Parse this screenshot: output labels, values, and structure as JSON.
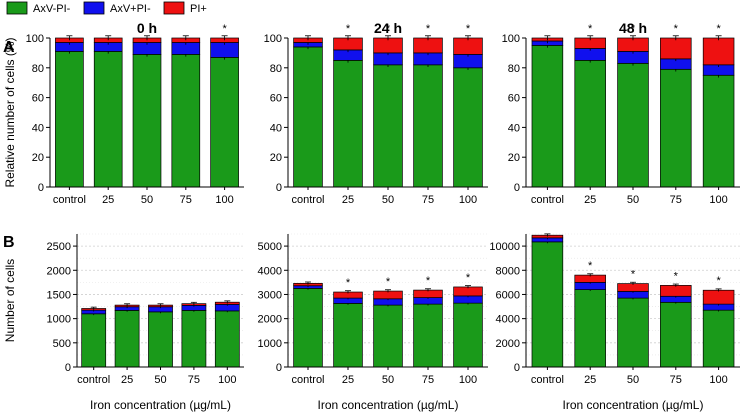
{
  "legend": [
    {
      "label": "AxV-PI-",
      "color": "#1a9a1a"
    },
    {
      "label": "AxV+PI-",
      "color": "#1010ee"
    },
    {
      "label": "PI+",
      "color": "#ee1111"
    }
  ],
  "row_labels": {
    "A": "A",
    "B": "B"
  },
  "shared_xlabel": "Iron concentration (µg/mL)",
  "chart_data": [
    {
      "id": "A0",
      "type": "bar",
      "stacked": true,
      "title": "0 h",
      "ylabel": "Relative number of cells (%)",
      "xlabel": "",
      "ylim": [
        0,
        100
      ],
      "yticks": [
        0,
        20,
        40,
        60,
        80,
        100
      ],
      "grid": false,
      "categories": [
        "control",
        "25",
        "50",
        "75",
        "100"
      ],
      "series": [
        {
          "name": "AxV-PI-",
          "values": [
            91,
            91,
            89,
            89,
            87
          ]
        },
        {
          "name": "AxV+PI-",
          "values": [
            6,
            6,
            8,
            8,
            10
          ]
        },
        {
          "name": "PI+",
          "values": [
            3,
            3,
            3,
            3,
            3
          ]
        }
      ],
      "annotations": [
        "",
        "",
        "",
        "",
        "*"
      ]
    },
    {
      "id": "A24",
      "type": "bar",
      "stacked": true,
      "title": "24 h",
      "ylabel": "",
      "xlabel": "",
      "ylim": [
        0,
        100
      ],
      "yticks": [
        0,
        20,
        40,
        60,
        80,
        100
      ],
      "grid": false,
      "categories": [
        "control",
        "25",
        "50",
        "75",
        "100"
      ],
      "series": [
        {
          "name": "AxV-PI-",
          "values": [
            94,
            85,
            82,
            82,
            80
          ]
        },
        {
          "name": "AxV+PI-",
          "values": [
            3,
            7,
            8,
            8,
            9
          ]
        },
        {
          "name": "PI+",
          "values": [
            3,
            8,
            10,
            10,
            11
          ]
        }
      ],
      "annotations": [
        "",
        "*",
        "*",
        "*",
        "*"
      ]
    },
    {
      "id": "A48",
      "type": "bar",
      "stacked": true,
      "title": "48 h",
      "ylabel": "",
      "xlabel": "",
      "ylim": [
        0,
        100
      ],
      "yticks": [
        0,
        20,
        40,
        60,
        80,
        100
      ],
      "grid": false,
      "categories": [
        "control",
        "25",
        "50",
        "75",
        "100"
      ],
      "series": [
        {
          "name": "AxV-PI-",
          "values": [
            95,
            85,
            83,
            79,
            75
          ]
        },
        {
          "name": "AxV+PI-",
          "values": [
            3,
            8,
            8,
            7,
            7
          ]
        },
        {
          "name": "PI+",
          "values": [
            2,
            7,
            9,
            14,
            18
          ]
        }
      ],
      "annotations": [
        "",
        "*",
        "*",
        "*",
        "*"
      ]
    },
    {
      "id": "B0",
      "type": "bar",
      "stacked": true,
      "title": "",
      "ylabel": "Number of cells",
      "xlabel": "Iron concentration (µg/mL)",
      "ylim": [
        0,
        2750
      ],
      "yticks": [
        0,
        500,
        1000,
        1500,
        2000,
        2500
      ],
      "grid": true,
      "categories": [
        "control",
        "25",
        "50",
        "75",
        "100"
      ],
      "series": [
        {
          "name": "AxV-PI-",
          "values": [
            1100,
            1170,
            1140,
            1170,
            1160
          ]
        },
        {
          "name": "AxV+PI-",
          "values": [
            75,
            75,
            105,
            105,
            135
          ]
        },
        {
          "name": "PI+",
          "values": [
            35,
            35,
            35,
            35,
            45
          ]
        }
      ],
      "annotations": [
        "",
        "",
        "",
        "",
        ""
      ]
    },
    {
      "id": "B24",
      "type": "bar",
      "stacked": true,
      "title": "",
      "ylabel": "",
      "xlabel": "Iron concentration (µg/mL)",
      "ylim": [
        0,
        5500
      ],
      "yticks": [
        0,
        1000,
        2000,
        3000,
        4000,
        5000
      ],
      "grid": true,
      "categories": [
        "control",
        "25",
        "50",
        "75",
        "100"
      ],
      "series": [
        {
          "name": "AxV-PI-",
          "values": [
            3250,
            2630,
            2560,
            2600,
            2640
          ]
        },
        {
          "name": "AxV+PI-",
          "values": [
            110,
            220,
            260,
            270,
            300
          ]
        },
        {
          "name": "PI+",
          "values": [
            100,
            250,
            320,
            310,
            370
          ]
        }
      ],
      "annotations": [
        "",
        "*",
        "*",
        "*",
        "*"
      ]
    },
    {
      "id": "B48",
      "type": "bar",
      "stacked": true,
      "title": "",
      "ylabel": "",
      "xlabel": "Iron concentration (µg/mL)",
      "ylim": [
        0,
        11000
      ],
      "yticks": [
        0,
        2000,
        4000,
        6000,
        8000,
        10000
      ],
      "grid": true,
      "categories": [
        "control",
        "25",
        "50",
        "75",
        "100"
      ],
      "series": [
        {
          "name": "AxV-PI-",
          "values": [
            10350,
            6400,
            5700,
            5350,
            4700
          ]
        },
        {
          "name": "AxV+PI-",
          "values": [
            330,
            600,
            550,
            500,
            500
          ]
        },
        {
          "name": "PI+",
          "values": [
            220,
            600,
            650,
            900,
            1150
          ]
        }
      ],
      "annotations": [
        "",
        "*",
        "*",
        "*",
        "*"
      ]
    }
  ]
}
